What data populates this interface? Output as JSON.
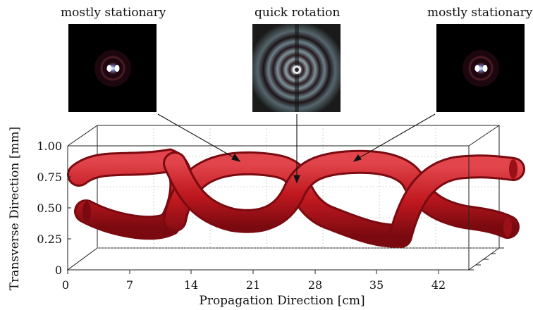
{
  "figure": {
    "captions": [
      "mostly stationary",
      "quick rotation",
      "mostly stationary"
    ],
    "axes": {
      "xlabel": "Propagation Direction [cm]",
      "ylabel": "Transverse Direction [mm]",
      "xticks": [
        "0",
        "7",
        "14",
        "21",
        "28",
        "35",
        "42"
      ],
      "yticks": [
        "1.00",
        "0.75",
        "0.50",
        "0.25",
        "0"
      ]
    },
    "colors": {
      "tube": "#c0181f",
      "tube_dark": "#7a0a10",
      "tube_light": "#e2464c"
    }
  },
  "chart_data": {
    "type": "other",
    "x_range": [
      0,
      42
    ],
    "y_range": [
      0,
      1.0
    ],
    "grid": true
  }
}
